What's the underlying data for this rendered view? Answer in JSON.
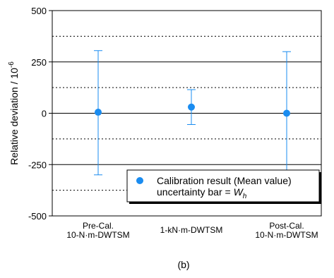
{
  "chart_data": {
    "type": "scatter",
    "ylabel": "Relative deviation / 10",
    "ylabel_superscript": "-6",
    "ylim": [
      -500,
      500
    ],
    "yticks": [
      -500,
      -250,
      0,
      250,
      500
    ],
    "ytick_labels": [
      "-500",
      "-250",
      "0",
      "250",
      "500"
    ],
    "minor_gridlines": [
      -375,
      -125,
      125,
      375
    ],
    "categories": [
      {
        "line1": "Pre-Cal.",
        "line2": "10-N·m-DWTSM"
      },
      {
        "line1": "1-kN·m-DWTSM",
        "line2": ""
      },
      {
        "line1": "Post-Cal.",
        "line2": "10-N·m-DWTSM"
      }
    ],
    "values": [
      5,
      30,
      0
    ],
    "error_upper": [
      305,
      115,
      300
    ],
    "error_lower": [
      -300,
      -55,
      -305
    ],
    "colors": {
      "marker": "#1a8cf0",
      "errorbar": "#1a8cf0"
    },
    "legend": {
      "placement": "bottom-right",
      "line1": "Calibration result (Mean value)",
      "line2_prefix": "uncertainty bar = ",
      "line2_symbol": "W",
      "line2_subscript": "h"
    },
    "caption": "(b)"
  }
}
